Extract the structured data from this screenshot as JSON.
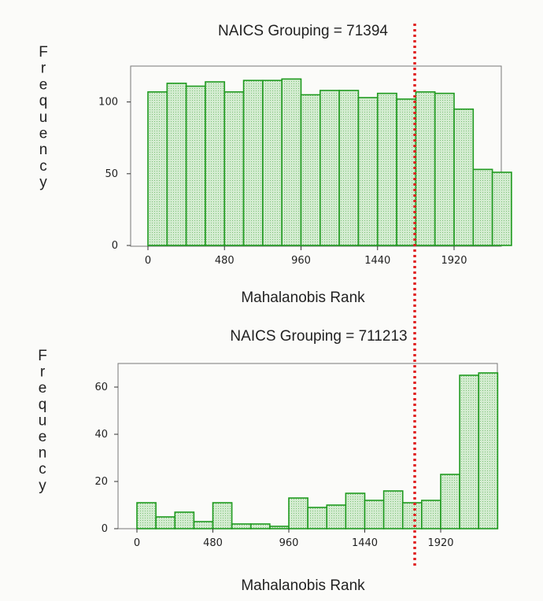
{
  "colors": {
    "bar_stroke": "#1f9a1f",
    "bar_fill": "#d3ecd0",
    "bar_dots": "#7fc07a",
    "axis": "#333333",
    "frame": "#777777",
    "reference_line": "#e02020"
  },
  "chart_data": [
    {
      "type": "bar",
      "title": "NAICS Grouping = 71394",
      "xlabel": "Mahalanobis Rank",
      "ylabel": "Frequency",
      "xticks": [
        "0",
        "480",
        "960",
        "1440",
        "1920"
      ],
      "yticks": [
        "0",
        "50",
        "100"
      ],
      "ylim": [
        0,
        125
      ],
      "xlim": [
        -80,
        2190
      ],
      "bin_width": 120,
      "bin_starts": [
        0,
        120,
        240,
        360,
        480,
        600,
        720,
        840,
        960,
        1080,
        1200,
        1320,
        1440,
        1560,
        1680,
        1800,
        1920,
        2040
      ],
      "values": [
        107,
        113,
        111,
        114,
        107,
        115,
        115,
        116,
        105,
        108,
        108,
        103,
        106,
        102,
        107,
        106,
        95,
        53
      ],
      "extra_bar": {
        "start": 2160,
        "value": 51
      },
      "grid": false,
      "legend": "none"
    },
    {
      "type": "bar",
      "title": "NAICS Grouping = 711213",
      "xlabel": "Mahalanobis Rank",
      "ylabel": "Frequency",
      "xticks": [
        "0",
        "480",
        "960",
        "1440",
        "1920"
      ],
      "yticks": [
        "0",
        "20",
        "40",
        "60"
      ],
      "ylim": [
        0,
        70
      ],
      "xlim": [
        -80,
        2260
      ],
      "bin_width": 120,
      "bin_starts": [
        0,
        120,
        240,
        360,
        480,
        600,
        720,
        840,
        960,
        1080,
        1200,
        1320,
        1440,
        1560,
        1680,
        1800,
        1920,
        2040,
        2160
      ],
      "values": [
        11,
        5,
        7,
        3,
        11,
        2,
        2,
        1,
        13,
        9,
        10,
        15,
        12,
        16,
        11,
        12,
        23,
        65,
        66
      ],
      "grid": false,
      "legend": "none"
    }
  ],
  "reference_line": {
    "style": "dotted vertical",
    "x_value": 1750
  }
}
